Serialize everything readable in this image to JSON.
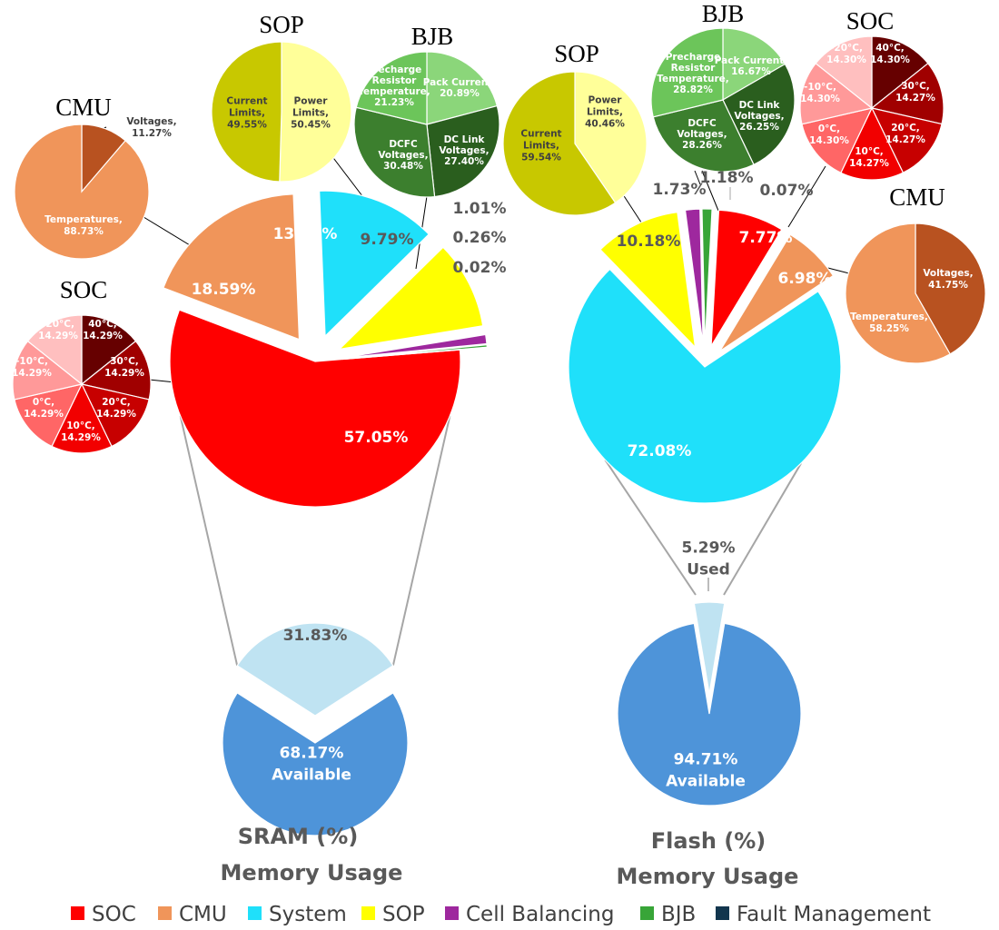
{
  "chart_data": [
    {
      "type": "pie",
      "title": "SRAM (%)",
      "subtitle": "Memory Usage",
      "main": {
        "labels": [
          "SOC",
          "CMU",
          "System",
          "SOP",
          "Cell Balancing",
          "BJB",
          "Fault Management"
        ],
        "values": [
          57.05,
          18.59,
          13.28,
          9.79,
          1.01,
          0.26,
          0.02
        ],
        "display": [
          "57.05%",
          "18.59%",
          "13.28%",
          "9.79%",
          "1.01%",
          "0.26%",
          "0.02%"
        ]
      },
      "usage": {
        "used": 31.83,
        "used_label": "31.83%",
        "available": 68.17,
        "available_label": "68.17%",
        "available_word": "Available"
      },
      "breakdowns": {
        "SOC": {
          "title": "SOC",
          "labels": [
            "40°C",
            "30°C",
            "20°C",
            "10°C",
            "0°C",
            "-10°C",
            "-20°C"
          ],
          "values": [
            14.29,
            14.29,
            14.29,
            14.29,
            14.29,
            14.29,
            14.29
          ]
        },
        "CMU": {
          "title": "CMU",
          "labels": [
            "Voltages",
            "Temperatures"
          ],
          "values": [
            11.27,
            88.73
          ]
        },
        "SOP": {
          "title": "SOP",
          "labels": [
            "Power Limits",
            "Current Limits"
          ],
          "values": [
            50.45,
            49.55
          ]
        },
        "BJB": {
          "title": "BJB",
          "labels": [
            "Pack Current",
            "DC Link Voltages",
            "DCFC Voltages",
            "Precharge Resistor Temperature"
          ],
          "values": [
            20.89,
            27.4,
            30.48,
            21.23
          ]
        }
      }
    },
    {
      "type": "pie",
      "title": "Flash (%)",
      "subtitle": "Memory Usage",
      "main": {
        "labels": [
          "SOC",
          "CMU",
          "System",
          "SOP",
          "Cell Balancing",
          "BJB",
          "Fault Management"
        ],
        "values": [
          7.77,
          6.98,
          72.08,
          10.18,
          1.73,
          1.18,
          0.07
        ],
        "display": [
          "7.77%",
          "6.98%",
          "72.08%",
          "10.18%",
          "1.73%",
          "1.18%",
          "0.07%"
        ]
      },
      "usage": {
        "used": 5.29,
        "used_label": "5.29%",
        "used_word": "Used",
        "available": 94.71,
        "available_label": "94.71%",
        "available_word": "Available"
      },
      "breakdowns": {
        "SOC": {
          "title": "SOC",
          "labels": [
            "40°C",
            "30°C",
            "20°C",
            "10°C",
            "0°C",
            "-10°C",
            "-20°C"
          ],
          "values": [
            14.3,
            14.27,
            14.27,
            14.27,
            14.3,
            14.3,
            14.3
          ]
        },
        "CMU": {
          "title": "CMU",
          "labels": [
            "Voltages",
            "Temperatures"
          ],
          "values": [
            41.75,
            58.25
          ]
        },
        "SOP": {
          "title": "SOP",
          "labels": [
            "Power Limits",
            "Current Limits"
          ],
          "values": [
            40.46,
            59.54
          ]
        },
        "BJB": {
          "title": "BJB",
          "labels": [
            "Pack Current",
            "DC Link Voltages",
            "DCFC Voltages",
            "Precharge Resistor Temperature"
          ],
          "values": [
            16.67,
            26.25,
            28.26,
            28.82
          ]
        }
      }
    }
  ],
  "legend": [
    {
      "label": "SOC",
      "color": "#ff0000"
    },
    {
      "label": "CMU",
      "color": "#f0955a"
    },
    {
      "label": "System",
      "color": "#1fe0fa"
    },
    {
      "label": "SOP",
      "color": "#ffff00"
    },
    {
      "label": "Cell Balancing",
      "color": "#9e289e"
    },
    {
      "label": "BJB",
      "color": "#38a538"
    },
    {
      "label": "Fault Management",
      "color": "#12364e"
    }
  ],
  "colors": {
    "soc_breakdown": [
      "#660000",
      "#a00000",
      "#c70000",
      "#f20000",
      "#ff6666",
      "#ff9999",
      "#ffbfbf"
    ],
    "cmu_breakdown": [
      "#b85220",
      "#f0955a"
    ],
    "sop_breakdown": [
      "#ffff99",
      "#c8c800"
    ],
    "bjb_breakdown": [
      "#8bd67a",
      "#2a5e1e",
      "#3c7f2e",
      "#6cc55a"
    ],
    "used": "#bfe3f2",
    "available": "#4e94d9"
  }
}
